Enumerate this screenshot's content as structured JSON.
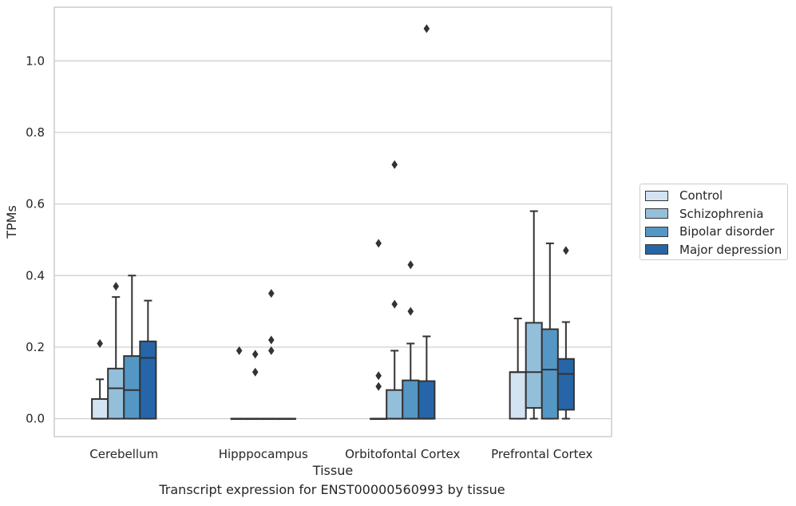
{
  "caption": "Transcript expression for ENST00000560993 by tissue",
  "chart_data": {
    "type": "boxplot",
    "xlabel": "Tissue",
    "ylabel": "TPMs",
    "ylim": [
      -0.05,
      1.15
    ],
    "yticks": [
      "0.0",
      "0.2",
      "0.4",
      "0.6",
      "0.8",
      "1.0"
    ],
    "grid": true,
    "legend_position": "right",
    "categories": [
      "Cerebellum",
      "Hipppocampus",
      "Orbitofontal Cortex",
      "Prefrontal Cortex"
    ],
    "series": [
      {
        "name": "Control",
        "color": "#d3e3f2",
        "boxes": [
          {
            "whislo": 0.0,
            "q1": 0.0,
            "med": 0.0,
            "q3": 0.055,
            "whishi": 0.11,
            "fliers": [
              0.21
            ]
          },
          {
            "whislo": 0.0,
            "q1": 0.0,
            "med": 0.0,
            "q3": 0.0,
            "whishi": 0.0,
            "fliers": [
              0.19
            ]
          },
          {
            "whislo": 0.0,
            "q1": 0.0,
            "med": 0.0,
            "q3": 0.0,
            "whishi": 0.0,
            "fliers": [
              0.09,
              0.12,
              0.49
            ]
          },
          {
            "whislo": 0.0,
            "q1": 0.0,
            "med": 0.13,
            "q3": 0.13,
            "whishi": 0.28,
            "fliers": []
          }
        ]
      },
      {
        "name": "Schizophrenia",
        "color": "#94bfdb",
        "boxes": [
          {
            "whislo": 0.0,
            "q1": 0.0,
            "med": 0.085,
            "q3": 0.14,
            "whishi": 0.34,
            "fliers": [
              0.37
            ]
          },
          {
            "whislo": 0.0,
            "q1": 0.0,
            "med": 0.0,
            "q3": 0.0,
            "whishi": 0.0,
            "fliers": [
              0.13,
              0.18
            ]
          },
          {
            "whislo": 0.0,
            "q1": 0.0,
            "med": 0.0,
            "q3": 0.08,
            "whishi": 0.19,
            "fliers": [
              0.32,
              0.71
            ]
          },
          {
            "whislo": 0.0,
            "q1": 0.03,
            "med": 0.13,
            "q3": 0.268,
            "whishi": 0.58,
            "fliers": []
          }
        ]
      },
      {
        "name": "Bipolar disorder",
        "color": "#5497c5",
        "boxes": [
          {
            "whislo": 0.0,
            "q1": 0.0,
            "med": 0.08,
            "q3": 0.175,
            "whishi": 0.4,
            "fliers": []
          },
          {
            "whislo": 0.0,
            "q1": 0.0,
            "med": 0.0,
            "q3": 0.0,
            "whishi": 0.0,
            "fliers": [
              0.19,
              0.22,
              0.35
            ]
          },
          {
            "whislo": 0.0,
            "q1": 0.0,
            "med": 0.0,
            "q3": 0.107,
            "whishi": 0.21,
            "fliers": [
              0.3,
              0.43
            ]
          },
          {
            "whislo": 0.0,
            "q1": 0.0,
            "med": 0.137,
            "q3": 0.25,
            "whishi": 0.49,
            "fliers": []
          }
        ]
      },
      {
        "name": "Major depression",
        "color": "#2666a8",
        "boxes": [
          {
            "whislo": 0.0,
            "q1": 0.0,
            "med": 0.17,
            "q3": 0.216,
            "whishi": 0.33,
            "fliers": []
          },
          {
            "whislo": 0.0,
            "q1": 0.0,
            "med": 0.0,
            "q3": 0.0,
            "whishi": 0.0,
            "fliers": []
          },
          {
            "whislo": 0.0,
            "q1": 0.0,
            "med": 0.0,
            "q3": 0.105,
            "whishi": 0.23,
            "fliers": [
              1.09
            ]
          },
          {
            "whislo": 0.0,
            "q1": 0.025,
            "med": 0.125,
            "q3": 0.167,
            "whishi": 0.27,
            "fliers": [
              0.47
            ]
          }
        ]
      }
    ]
  }
}
